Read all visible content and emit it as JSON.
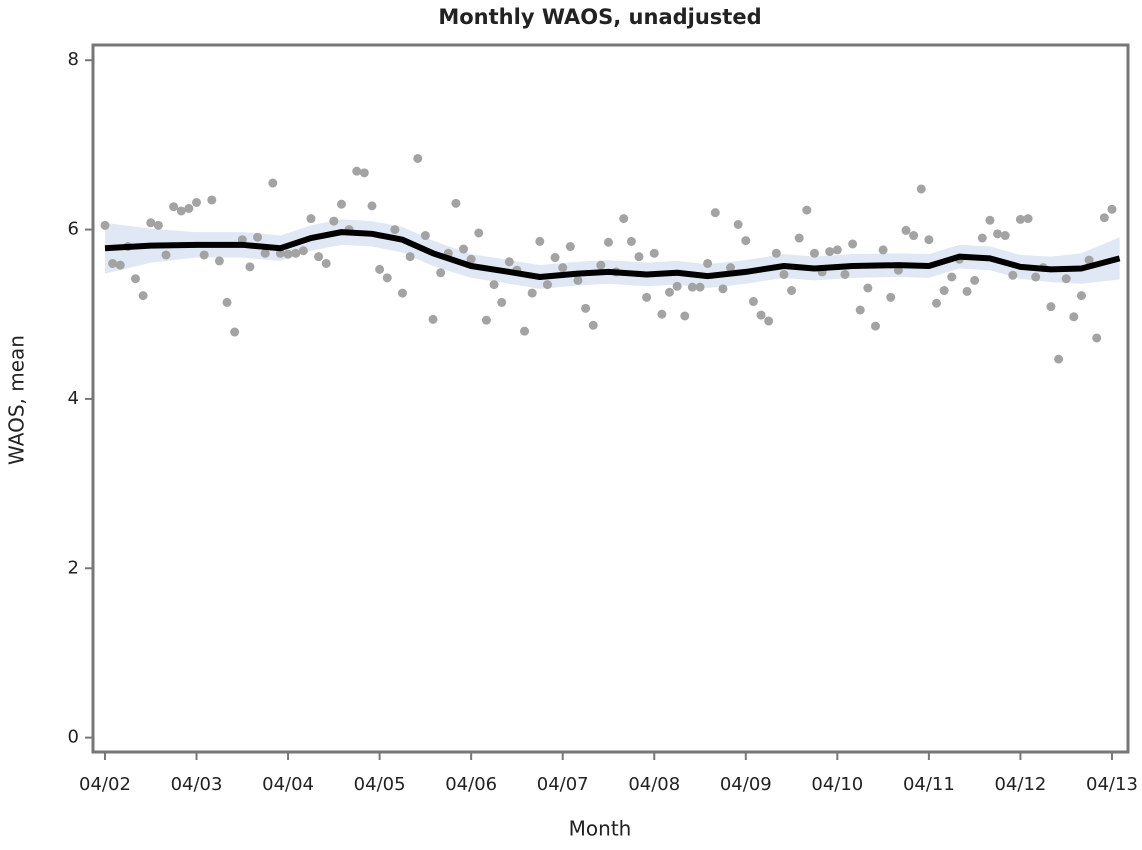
{
  "chart_data": {
    "type": "scatter",
    "title": "Monthly WAOS, unadjusted",
    "x_label": "Month",
    "y_label": "WAOS, mean",
    "x": [
      0,
      1,
      2,
      3,
      4,
      5,
      6,
      7,
      8,
      9,
      10,
      11,
      12,
      13,
      14,
      15,
      16,
      17,
      18,
      19,
      20,
      21,
      22,
      23,
      24,
      25,
      26,
      27,
      28,
      29,
      30,
      31,
      32,
      33,
      34,
      35,
      36,
      37,
      38,
      39,
      40,
      41,
      42,
      43,
      44,
      45,
      46,
      47,
      48,
      49,
      50,
      51,
      52,
      53,
      54,
      55,
      56,
      57,
      58,
      59,
      60,
      61,
      62,
      63,
      64,
      65,
      66,
      67,
      68,
      69,
      70,
      71,
      72,
      73,
      74,
      75,
      76,
      77,
      78,
      79,
      80,
      81,
      82,
      83,
      84,
      85,
      86,
      87,
      88,
      89,
      90,
      91,
      92,
      93,
      94,
      95,
      96,
      97,
      98,
      99,
      100,
      101,
      102,
      103,
      104,
      105,
      106,
      107,
      108,
      109,
      110,
      111,
      112,
      113,
      114,
      115,
      116,
      117,
      118,
      119,
      120,
      121,
      122,
      123,
      124,
      125,
      126,
      127,
      128,
      129,
      130,
      131,
      132
    ],
    "values": [
      6.05,
      5.6,
      5.58,
      5.8,
      5.42,
      5.22,
      6.08,
      6.05,
      5.7,
      6.27,
      6.22,
      6.25,
      6.32,
      5.7,
      6.35,
      5.63,
      5.14,
      4.79,
      5.88,
      5.56,
      5.91,
      5.72,
      6.55,
      5.72,
      5.71,
      5.72,
      5.75,
      6.13,
      5.68,
      5.6,
      6.1,
      6.3,
      6.0,
      6.69,
      6.67,
      6.28,
      5.53,
      5.43,
      6.0,
      5.25,
      5.68,
      6.84,
      5.93,
      4.94,
      5.49,
      5.72,
      6.31,
      5.77,
      5.65,
      5.96,
      4.93,
      5.35,
      5.14,
      5.62,
      5.52,
      4.8,
      5.25,
      5.86,
      5.35,
      5.67,
      5.55,
      5.8,
      5.4,
      5.07,
      4.87,
      5.58,
      5.85,
      5.5,
      6.13,
      5.86,
      5.68,
      5.2,
      5.72,
      5.0,
      5.26,
      5.33,
      4.98,
      5.32,
      5.32,
      5.6,
      6.2,
      5.3,
      5.55,
      6.06,
      5.87,
      5.15,
      4.99,
      4.92,
      5.72,
      5.47,
      5.28,
      5.9,
      6.23,
      5.72,
      5.5,
      5.74,
      5.76,
      5.47,
      5.83,
      5.05,
      5.31,
      4.86,
      5.76,
      5.2,
      5.52,
      5.99,
      5.93,
      6.48,
      5.88,
      5.13,
      5.28,
      5.44,
      5.65,
      5.27,
      5.4,
      5.9,
      6.11,
      5.95,
      5.93,
      5.46,
      6.12,
      6.13,
      5.44,
      5.55,
      5.09,
      4.47,
      5.42,
      4.97,
      5.22,
      5.64,
      4.72,
      6.14,
      6.24
    ],
    "color": "#a3a3a3",
    "fit": {
      "color": "#000000",
      "band_color": "#dfe8f4",
      "x": [
        0,
        6,
        12,
        18,
        23,
        27,
        31,
        35,
        39,
        43,
        48,
        53,
        57,
        62,
        66,
        71,
        75,
        79,
        84,
        89,
        93,
        98,
        104,
        108,
        112,
        116,
        120,
        124,
        128,
        133
      ],
      "values": [
        5.78,
        5.81,
        5.82,
        5.82,
        5.78,
        5.9,
        5.97,
        5.95,
        5.88,
        5.72,
        5.57,
        5.5,
        5.44,
        5.48,
        5.5,
        5.47,
        5.49,
        5.45,
        5.5,
        5.57,
        5.54,
        5.57,
        5.58,
        5.57,
        5.68,
        5.66,
        5.56,
        5.53,
        5.54,
        5.66
      ],
      "lower": [
        5.48,
        5.61,
        5.67,
        5.67,
        5.63,
        5.75,
        5.82,
        5.8,
        5.73,
        5.57,
        5.43,
        5.36,
        5.3,
        5.34,
        5.36,
        5.33,
        5.35,
        5.31,
        5.36,
        5.43,
        5.4,
        5.43,
        5.44,
        5.43,
        5.54,
        5.52,
        5.42,
        5.38,
        5.36,
        5.41
      ],
      "upper": [
        6.08,
        6.01,
        5.97,
        5.97,
        5.93,
        6.05,
        6.12,
        6.1,
        6.03,
        5.87,
        5.71,
        5.64,
        5.58,
        5.62,
        5.64,
        5.61,
        5.63,
        5.59,
        5.64,
        5.71,
        5.68,
        5.71,
        5.72,
        5.71,
        5.82,
        5.8,
        5.7,
        5.68,
        5.72,
        5.91
      ]
    },
    "xlim": [
      -1.57,
      134.1
    ],
    "xticks": [
      {
        "value": 0,
        "label": "04/02"
      },
      {
        "value": 12,
        "label": "04/03"
      },
      {
        "value": 24,
        "label": "04/04"
      },
      {
        "value": 36,
        "label": "04/05"
      },
      {
        "value": 48,
        "label": "04/06"
      },
      {
        "value": 60,
        "label": "04/07"
      },
      {
        "value": 72,
        "label": "04/08"
      },
      {
        "value": 84,
        "label": "04/09"
      },
      {
        "value": 96,
        "label": "04/10"
      },
      {
        "value": 108,
        "label": "04/11"
      },
      {
        "value": 120,
        "label": "04/12"
      },
      {
        "value": 132,
        "label": "04/13"
      }
    ],
    "ylim": [
      -0.17,
      8.18
    ],
    "yticks": [
      0,
      2,
      4,
      6,
      8
    ]
  }
}
